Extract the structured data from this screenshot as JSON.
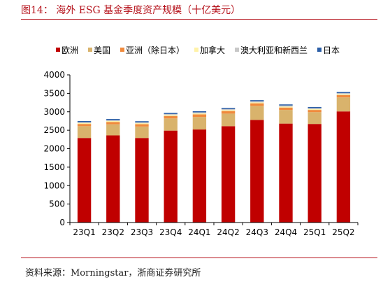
{
  "title": "图14： 海外 ESG 基金季度资产规模（十亿美元）",
  "source": "资料来源：Morningstar，浙商证券研究所",
  "chart_data": {
    "type": "bar",
    "stacked": true,
    "title": "图14： 海外 ESG 基金季度资产规模（十亿美元）",
    "xlabel": "",
    "ylabel": "",
    "ylim": [
      0,
      4000
    ],
    "yticks": [
      0,
      500,
      1000,
      1500,
      2000,
      2500,
      3000,
      3500,
      4000
    ],
    "categories": [
      "23Q1",
      "23Q2",
      "23Q3",
      "23Q4",
      "24Q1",
      "24Q2",
      "24Q3",
      "24Q4",
      "25Q1",
      "25Q2"
    ],
    "legend_position": "top",
    "grid": false,
    "series": [
      {
        "name": "欧洲",
        "color": "#c00000",
        "values": [
          2290,
          2360,
          2290,
          2490,
          2520,
          2610,
          2780,
          2680,
          2670,
          3010
        ]
      },
      {
        "name": "美国",
        "color": "#d9b36c",
        "values": [
          320,
          300,
          310,
          330,
          340,
          340,
          380,
          370,
          320,
          380
        ]
      },
      {
        "name": "亚洲（除日本）",
        "color": "#f08a3c",
        "values": [
          60,
          65,
          65,
          65,
          70,
          70,
          70,
          65,
          60,
          60
        ]
      },
      {
        "name": "加拿大",
        "color": "#fff2a8",
        "values": [
          25,
          25,
          25,
          25,
          25,
          25,
          25,
          25,
          25,
          25
        ]
      },
      {
        "name": "澳大利亚和新西兰",
        "color": "#c8c8c8",
        "values": [
          25,
          25,
          25,
          30,
          30,
          30,
          30,
          30,
          25,
          30
        ]
      },
      {
        "name": "日本",
        "color": "#2b5ea7",
        "values": [
          30,
          30,
          30,
          30,
          30,
          30,
          30,
          30,
          30,
          30
        ]
      }
    ]
  }
}
